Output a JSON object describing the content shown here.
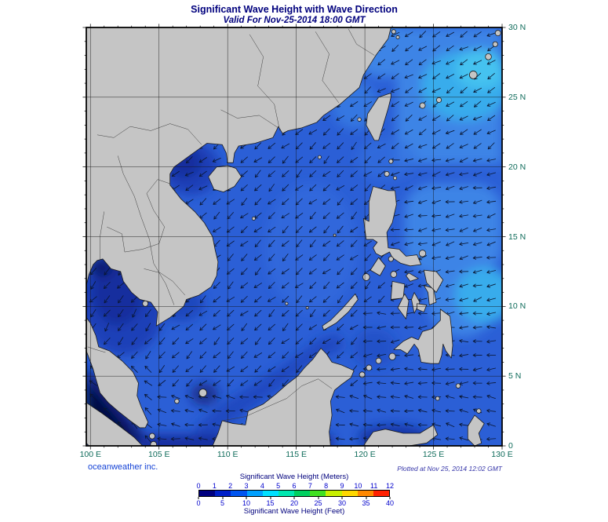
{
  "header": {
    "title": "Significant Wave Height with Wave Direction",
    "subtitle": "Valid For Nov-25-2014 18:00 GMT"
  },
  "map": {
    "lon_range": [
      99.7,
      130
    ],
    "lat_range": [
      0,
      30
    ],
    "grid_interval_deg": 5,
    "lon_labels": [
      "100 E",
      "105 E",
      "110 E",
      "115 E",
      "120 E",
      "125 E",
      "130 E"
    ],
    "lat_labels": [
      "30 N",
      "25 N",
      "20 N",
      "15 N",
      "10 N",
      "5 N",
      "0"
    ]
  },
  "footer": {
    "credit": "oceanweather inc.",
    "plotted": "Plotted at Nov 25, 2014 12:02 GMT"
  },
  "legend": {
    "title_meters": "Significant Wave Height (Meters)",
    "title_feet": "Significant Wave Height (Feet)",
    "meter_labels": [
      "0",
      "1",
      "2",
      "3",
      "4",
      "5",
      "6",
      "7",
      "8",
      "9",
      "10",
      "11",
      "12"
    ],
    "feet_labels": [
      "0",
      "5",
      "10",
      "15",
      "20",
      "25",
      "30",
      "35",
      "40"
    ],
    "colors": [
      "#000080",
      "#0020C8",
      "#0055F0",
      "#00A0FF",
      "#00E0FF",
      "#00E8B0",
      "#00D060",
      "#40E020",
      "#C8F000",
      "#FFD800",
      "#FF8800",
      "#FF2000"
    ]
  },
  "colors": {
    "title": "#00007D",
    "axis_label": "#0E6B5A",
    "credit": "#1543D6",
    "plotted": "#3434A8",
    "scale_num": "#0000CC",
    "ocean_base": "#2B5FD6",
    "ocean_light": "#3C84E6",
    "ocean_cyan": "#38ACEC",
    "ocean_cyan2": "#45C2F0",
    "ocean_midlight": "#3470E0",
    "ocean_dark": "#1C41B8",
    "ocean_darker": "#122D9E",
    "ocean_navy": "#0A1B72",
    "ocean_deepnavy": "#04103F",
    "land": "#C5C5C5",
    "coast": "#1C1C1C",
    "grid": "#141414",
    "arrow": "#0A1630"
  },
  "arrow_field": {
    "spacing_deg": 1,
    "default_dir": 222,
    "regions": [
      {
        "name": "malacca-strait",
        "lon": [
          99.7,
          104.6
        ],
        "lat": [
          0,
          5.6
        ],
        "dir": 140
      },
      {
        "name": "gulf-of-thailand",
        "lon": [
          99.7,
          105.3
        ],
        "lat": [
          5.6,
          13.8
        ],
        "dir": 232
      },
      {
        "name": "gulf-of-tonkin",
        "lon": [
          104.9,
          110.6
        ],
        "lat": [
          16.6,
          22
        ],
        "dir": 215
      },
      {
        "name": "pacific-north",
        "lon": [
          120.4,
          130.1
        ],
        "lat": [
          20.6,
          30
        ],
        "dir": 212
      },
      {
        "name": "pacific-mid",
        "lon": [
          121.8,
          130.1
        ],
        "lat": [
          9.8,
          20.6
        ],
        "dir": 194
      },
      {
        "name": "pacific-south",
        "lon": [
          119.8,
          130.1
        ],
        "lat": [
          4.2,
          9.8
        ],
        "dir": 184
      },
      {
        "name": "equatorial",
        "lon": [
          99.7,
          130.1
        ],
        "lat": [
          0,
          4.2
        ],
        "dir": 170
      }
    ]
  }
}
